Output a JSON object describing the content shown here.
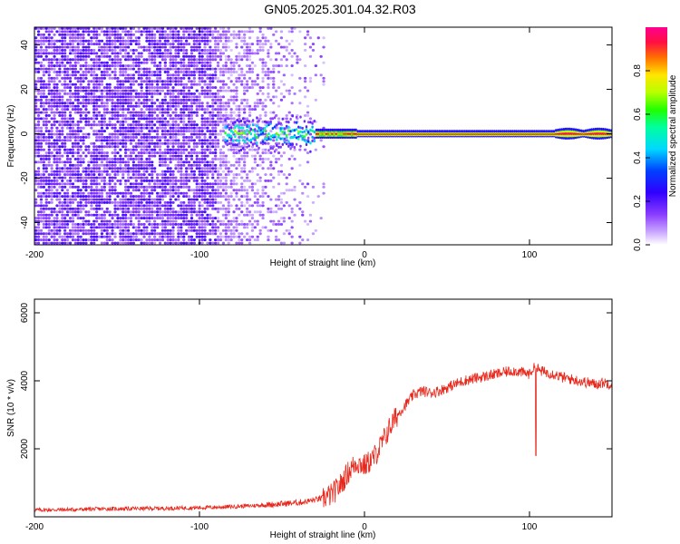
{
  "title": "GN05.2025.301.04.32.R03",
  "colors": {
    "snr_line": "#e8281c",
    "colormap": [
      "#ffffff",
      "#d9c7ff",
      "#8a3cff",
      "#5a00ff",
      "#0018ff",
      "#00e5ff",
      "#00ff5a",
      "#b6ff00",
      "#ffff00",
      "#ff7a00",
      "#ff0044",
      "#ff0096"
    ]
  },
  "chart_data": [
    {
      "type": "heatmap",
      "name": "spectrogram",
      "xlabel": "Height of straight line (km)",
      "ylabel": "Frequency (Hz)",
      "xlim": [
        -200,
        150
      ],
      "ylim": [
        -50,
        48
      ],
      "xticks": [
        -200,
        -100,
        0,
        100
      ],
      "yticks": [
        -40,
        -20,
        0,
        20,
        40
      ],
      "colorbar": {
        "label": "Normalized spectral amplitude",
        "range": [
          0.0,
          1.0
        ],
        "ticks": [
          0.0,
          0.2,
          0.4,
          0.6,
          0.8
        ]
      },
      "features": {
        "noise_region_x": [
          -200,
          -30
        ],
        "carrier_line_frequency_hz": 0,
        "carrier_start_km": -85,
        "strong_carrier_start_km": -30
      },
      "grid": false
    },
    {
      "type": "line",
      "name": "snr",
      "xlabel": "Height of straight line (km)",
      "ylabel": "SNR (10 * v/v)",
      "xlim": [
        -200,
        150
      ],
      "ylim": [
        0,
        6400
      ],
      "xticks": [
        -200,
        -100,
        0,
        100
      ],
      "yticks": [
        2000,
        4000,
        6000
      ],
      "grid": false,
      "series": [
        {
          "x": [
            -200,
            -180,
            -160,
            -140,
            -120,
            -100,
            -90,
            -80,
            -70,
            -60,
            -50,
            -40,
            -35,
            -30,
            -25,
            -20,
            -15,
            -10,
            -5,
            0,
            5,
            10,
            15,
            20,
            25,
            30,
            35,
            40,
            45,
            50,
            55,
            60,
            65,
            70,
            75,
            80,
            85,
            90,
            95,
            100,
            102,
            104,
            106,
            110,
            115,
            120,
            125,
            130,
            135,
            140,
            145,
            150
          ],
          "y": [
            200,
            210,
            230,
            240,
            250,
            270,
            280,
            300,
            320,
            350,
            380,
            420,
            450,
            500,
            550,
            650,
            900,
            1300,
            1600,
            1500,
            1700,
            2100,
            2600,
            3000,
            3300,
            3600,
            3700,
            3650,
            3700,
            3800,
            3900,
            4000,
            4050,
            4100,
            4150,
            4200,
            4250,
            4300,
            4250,
            4200,
            4350,
            4400,
            4300,
            4250,
            4200,
            4100,
            4050,
            4000,
            3950,
            3900,
            3950,
            3900
          ]
        }
      ]
    }
  ]
}
